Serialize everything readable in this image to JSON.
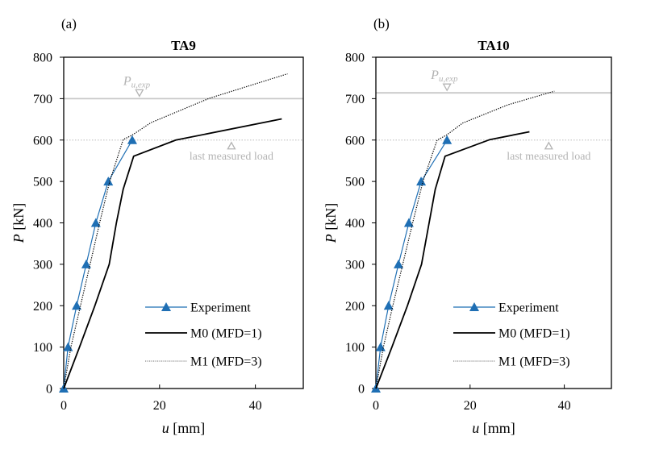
{
  "chart_data": [
    {
      "type": "line",
      "panel_label": "(a)",
      "title": "TA9",
      "xlabel_var": "u",
      "xlabel_unit": "[mm]",
      "ylabel_var": "P",
      "ylabel_unit": "[kN]",
      "xlim": [
        0,
        50
      ],
      "ylim": [
        0,
        800
      ],
      "xticks": [
        0,
        20,
        40
      ],
      "yticks": [
        0,
        100,
        200,
        300,
        400,
        500,
        600,
        700,
        800
      ],
      "grid": false,
      "legend_position": "bottom-right",
      "reference_lines": [
        {
          "name": "Pu_exp",
          "y": 700,
          "style": "solid",
          "color": "#c8c8c8"
        },
        {
          "name": "last_measured_load",
          "y": 600,
          "style": "dotted",
          "color": "#c8c8c8"
        }
      ],
      "annotations": [
        {
          "name": "pu-exp",
          "text_main": "P",
          "text_sub": "u,exp",
          "marker": "down-triangle",
          "x": 15.8,
          "y": 700
        },
        {
          "name": "last-measured-load",
          "text": "last measured load",
          "marker": "up-triangle",
          "x": 35,
          "y": 600
        }
      ],
      "series": [
        {
          "name": "Experiment",
          "color": "#1f6fb4",
          "style": "solid-marker-triangle",
          "x": [
            0,
            0.9,
            2.7,
            4.7,
            6.7,
            9.3,
            14.3
          ],
          "y": [
            0,
            100,
            200,
            300,
            400,
            500,
            600
          ]
        },
        {
          "name": "M0 (MFD=1)",
          "color": "#000000",
          "style": "solid",
          "x": [
            0,
            3.3,
            6.5,
            9.5,
            11,
            12.4,
            14.6,
            23.4,
            45.5
          ],
          "y": [
            0,
            100,
            200,
            300,
            400,
            481,
            561,
            600,
            651
          ]
        },
        {
          "name": "M1 (MFD=3)",
          "color": "#000000",
          "style": "dotted",
          "x": [
            0,
            1.5,
            3.5,
            5.5,
            7.5,
            9.6,
            12.4,
            14.3,
            18.2,
            30.4,
            46.7
          ],
          "y": [
            0,
            100,
            200,
            300,
            400,
            500,
            601,
            612,
            642,
            701,
            760
          ]
        }
      ]
    },
    {
      "type": "line",
      "panel_label": "(b)",
      "title": "TA10",
      "xlabel_var": "u",
      "xlabel_unit": "[mm]",
      "ylabel_var": "P",
      "ylabel_unit": "[kN]",
      "xlim": [
        0,
        50
      ],
      "ylim": [
        0,
        800
      ],
      "xticks": [
        0,
        20,
        40
      ],
      "yticks": [
        0,
        100,
        200,
        300,
        400,
        500,
        600,
        700,
        800
      ],
      "grid": false,
      "legend_position": "bottom-right",
      "reference_lines": [
        {
          "name": "Pu_exp",
          "y": 714,
          "style": "solid",
          "color": "#c8c8c8"
        },
        {
          "name": "last_measured_load",
          "y": 600,
          "style": "dotted",
          "color": "#c8c8c8"
        }
      ],
      "annotations": [
        {
          "name": "pu-exp",
          "text_main": "P",
          "text_sub": "u,exp",
          "marker": "down-triangle",
          "x": 15.1,
          "y": 714
        },
        {
          "name": "last-measured-load",
          "text": "last measured load",
          "marker": "up-triangle",
          "x": 36.7,
          "y": 600
        }
      ],
      "series": [
        {
          "name": "Experiment",
          "color": "#1f6fb4",
          "style": "solid-marker-triangle",
          "x": [
            0,
            1.0,
            2.7,
            4.8,
            7.0,
            9.6,
            15.1
          ],
          "y": [
            0,
            100,
            200,
            300,
            400,
            500,
            600
          ]
        },
        {
          "name": "M0 (MFD=1)",
          "color": "#000000",
          "style": "solid",
          "x": [
            0,
            3.4,
            6.7,
            9.7,
            11.3,
            12.6,
            14.7,
            24.2,
            32.6
          ],
          "y": [
            0,
            100,
            200,
            300,
            400,
            481,
            561,
            601,
            620
          ]
        },
        {
          "name": "M1 (MFD=3)",
          "color": "#000000",
          "style": "dotted",
          "x": [
            0,
            1.6,
            3.6,
            5.7,
            7.8,
            10.0,
            13.0,
            15.0,
            18.4,
            28.0,
            37.9
          ],
          "y": [
            0,
            100,
            200,
            300,
            400,
            500,
            600,
            612,
            641,
            685,
            718
          ]
        }
      ]
    }
  ]
}
